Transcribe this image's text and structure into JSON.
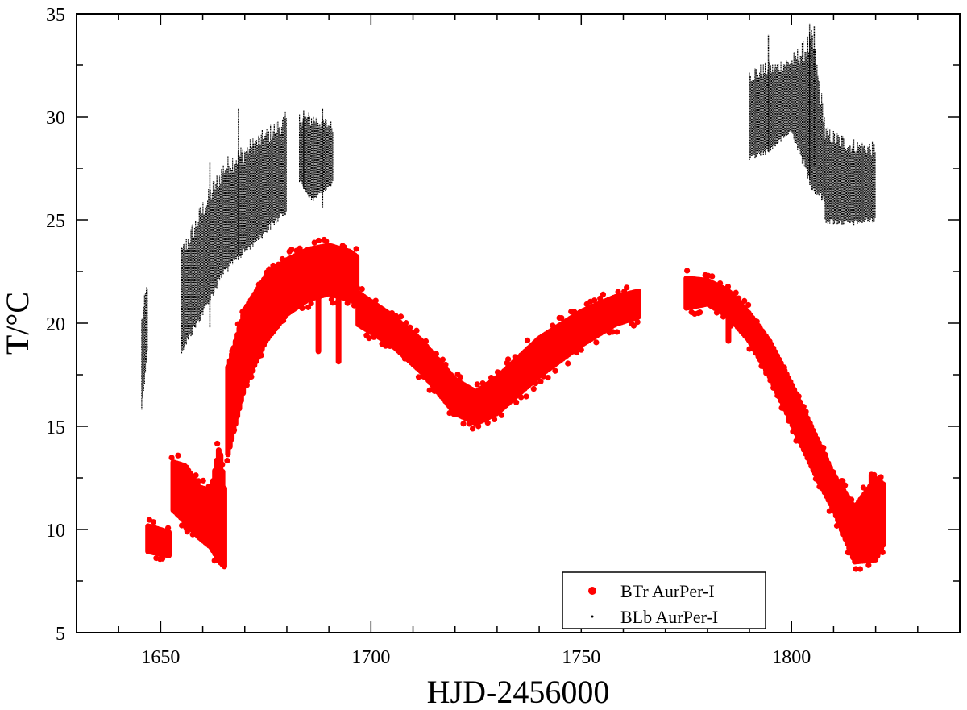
{
  "chart_data": {
    "type": "scatter",
    "xlabel": "HJD-2456000",
    "ylabel": "T/°C",
    "xlim": [
      1630,
      1840
    ],
    "ylim": [
      5,
      35
    ],
    "x_ticks": [
      1650,
      1700,
      1750,
      1800
    ],
    "y_ticks": [
      5,
      10,
      15,
      20,
      25,
      30,
      35
    ],
    "grid": false,
    "legend_position": "bottom-right",
    "series": [
      {
        "name": "BTr AurPer-I",
        "color": "#ff0000",
        "marker": "large-dot",
        "bands": [
          {
            "x": [
              1647,
              1652
            ],
            "low": [
              8.8,
              8.6
            ],
            "high": [
              10.3,
              10.0
            ]
          },
          {
            "x": [
              1653,
              1656,
              1659,
              1662,
              1664,
              1665.5
            ],
            "low": [
              10.8,
              10.2,
              9.5,
              9.0,
              8.3,
              8.0
            ],
            "high": [
              13.4,
              13.2,
              12.2,
              12.0,
              14.2,
              11.5
            ]
          },
          {
            "x": [
              1666,
              1670,
              1675,
              1680,
              1685,
              1690,
              1695,
              1697
            ],
            "low": [
              13.5,
              16.8,
              19.0,
              20.3,
              21.0,
              21.3,
              21.0,
              20.8
            ],
            "high": [
              18.0,
              20.8,
              22.4,
              23.2,
              23.7,
              23.9,
              23.6,
              23.3
            ]
          },
          {
            "x": [
              1697,
              1705,
              1712,
              1720,
              1725,
              1730,
              1740,
              1750,
              1758,
              1764
            ],
            "low": [
              19.8,
              18.8,
              17.5,
              15.5,
              15.0,
              15.5,
              17.3,
              18.8,
              19.8,
              20.2
            ],
            "high": [
              21.6,
              20.5,
              19.3,
              17.4,
              16.8,
              17.5,
              19.4,
              20.7,
              21.4,
              21.7
            ]
          },
          {
            "x": [
              1775,
              1780,
              1785,
              1790,
              1795,
              1800,
              1805,
              1810,
              1815,
              1820,
              1822
            ],
            "low": [
              20.6,
              20.8,
              20.2,
              19.0,
              17.2,
              15.0,
              12.8,
              10.8,
              8.3,
              8.4,
              9.2
            ],
            "high": [
              22.3,
              22.2,
              21.7,
              20.6,
              19.2,
              17.2,
              15.0,
              12.8,
              11.2,
              12.6,
              12.3
            ]
          }
        ]
      },
      {
        "name": "BLb AurPer-I",
        "color": "#000000",
        "marker": "small-dot",
        "bands": [
          {
            "x": [
              1645.5,
              1647
            ],
            "low": [
              15.7,
              18.8
            ],
            "high": [
              20.5,
              22.5
            ]
          },
          {
            "x": [
              1655,
              1660,
              1665,
              1670,
              1675,
              1680
            ],
            "low": [
              18.5,
              20.3,
              22.3,
              23.3,
              24.3,
              25.3
            ],
            "high": [
              23.8,
              26.0,
              28.0,
              28.8,
              29.5,
              30.3
            ]
          },
          {
            "x": [
              1683,
              1686,
              1691
            ],
            "low": [
              26.8,
              25.8,
              26.7
            ],
            "high": [
              30.2,
              30.3,
              29.8
            ]
          },
          {
            "x": [
              1790,
              1795,
              1800,
              1805,
              1808
            ],
            "low": [
              27.8,
              28.3,
              29.2,
              26.3,
              25.8
            ],
            "high": [
              32.5,
              32.7,
              33.0,
              34.3,
              30.0
            ]
          },
          {
            "x": [
              1808,
              1814,
              1820
            ],
            "low": [
              24.8,
              24.7,
              24.9
            ],
            "high": [
              29.6,
              29.0,
              28.8
            ]
          }
        ],
        "spikes": [
          {
            "x": 1661.7,
            "low": 19.8,
            "high": 27.8
          },
          {
            "x": 1668.5,
            "low": 23.3,
            "high": 30.4
          },
          {
            "x": 1684.0,
            "low": 26.5,
            "high": 30.3
          },
          {
            "x": 1688.5,
            "low": 25.6,
            "high": 30.4
          },
          {
            "x": 1794.5,
            "low": 28.3,
            "high": 34.0
          },
          {
            "x": 1804.3,
            "low": 27.0,
            "high": 34.5
          },
          {
            "x": 1805.4,
            "low": 27.6,
            "high": 34.4
          }
        ]
      }
    ],
    "dips": [
      {
        "series": 0,
        "x": 1687.5,
        "low": 18.5,
        "high": 22.2
      },
      {
        "series": 0,
        "x": 1692.3,
        "low": 18.0,
        "high": 22.0
      },
      {
        "series": 0,
        "x": 1785.0,
        "low": 19.0,
        "high": 21.0
      },
      {
        "series": 0,
        "x": 1812.0,
        "low": 10.0,
        "high": 12.5
      },
      {
        "series": 0,
        "x": 1819.0,
        "low": 9.5,
        "high": 12.8
      }
    ]
  }
}
